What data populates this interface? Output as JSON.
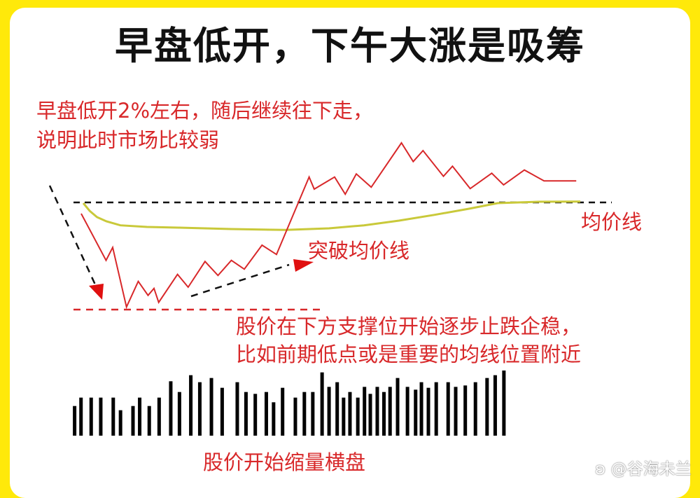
{
  "title": "早盘低开，下午大涨是吸筹",
  "annotations": {
    "open_line1": "早盘低开2%左右，随后继续往下走，",
    "open_line2": "说明此时市场比较弱",
    "avg_line": "均价线",
    "breakout": "突破均价线",
    "support_line1": "股价在下方支撑位开始逐步止跌企稳，",
    "support_line2": "比如前期低点或是重要的均线位置附近",
    "volume": "股价开始缩量横盘"
  },
  "watermark": {
    "icon": "weibo-icon",
    "text": "@谷海未兰"
  },
  "colors": {
    "background": "#ffe90a",
    "price_line": "#d8282a",
    "avg_line": "#c9c93a",
    "volume_bars": "#000000",
    "text_red": "#d8282a"
  },
  "volume_relative": [
    127,
    163,
    163,
    163,
    163,
    109,
    127,
    163,
    127,
    163,
    233,
    187,
    259,
    229,
    247,
    205,
    229,
    187,
    179,
    187,
    143,
    205,
    163,
    187,
    187,
    271,
    209,
    229,
    163,
    187,
    163,
    209,
    179,
    209,
    187,
    209,
    247,
    209,
    197,
    229,
    205,
    229,
    229,
    209,
    215,
    229,
    247,
    259,
    279
  ]
}
